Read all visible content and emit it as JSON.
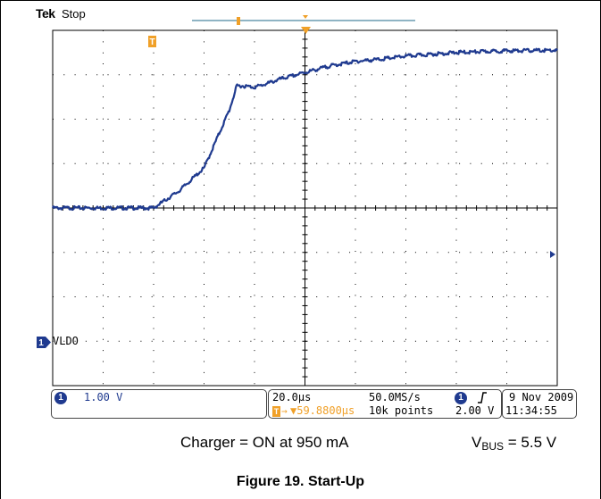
{
  "header": {
    "brand": "Tek",
    "acq_state": "Stop"
  },
  "channel": {
    "marker": "1",
    "label": "VLDO",
    "scale": "1.00 V",
    "color": "#1f3a8f"
  },
  "timebase": {
    "per_div": "20.0µs",
    "sample_rate": "50.0MS/s",
    "trigger_delay": "▼59.8800µs",
    "record_length": "10k points",
    "trigger_marker": "T",
    "trigger_delay_icon": "arrow-icon"
  },
  "trigger": {
    "source": "1",
    "slope_icon": "rising-edge-icon",
    "level": "2.00 V"
  },
  "datetime": {
    "date": "9 Nov 2009",
    "time": "11:34:55"
  },
  "conditions": {
    "charger": "Charger = ON at 950 mA",
    "vbus_v": "V",
    "vbus_sub": "BUS",
    "vbus_value": " = 5.5 V"
  },
  "caption": "Figure 19. Start-Up",
  "colors": {
    "trace": "#1f3a8f",
    "trigger": "#f0a028",
    "grid": "#000000",
    "background": "#ffffff"
  },
  "chart_data": {
    "type": "line",
    "title": "",
    "xlabel": "",
    "ylabel": "",
    "x_unit": "µs",
    "y_unit": "V",
    "xlim": [
      -80,
      120
    ],
    "ylim": [
      -4,
      4
    ],
    "grid": true,
    "series": [
      {
        "name": "VLDO",
        "x": [
          -80,
          -50,
          -40,
          -30,
          -20,
          -10,
          -7,
          -5,
          0,
          5,
          10,
          20,
          30,
          40,
          50,
          60,
          80,
          100,
          120
        ],
        "y": [
          0,
          0,
          0,
          0.38,
          0.9,
          2.2,
          2.75,
          2.75,
          2.72,
          2.8,
          2.9,
          3.05,
          3.2,
          3.3,
          3.35,
          3.42,
          3.5,
          3.54,
          3.55
        ]
      }
    ]
  }
}
